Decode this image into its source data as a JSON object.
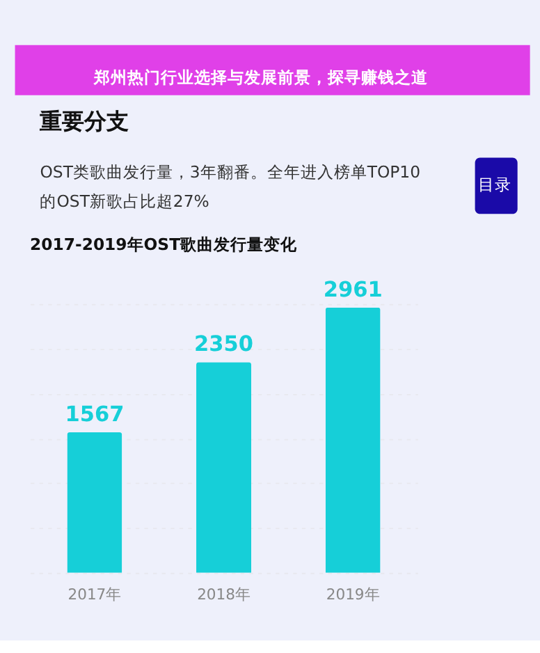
{
  "chart_data": {
    "type": "bar",
    "title": "2017-2019年OST歌曲发行量变化",
    "annotations": [
      "郑州热门行业选择与发展前景，探寻赚钱之道",
      "重要分支",
      "OST类歌曲发行量，3年翻番。全年进入榜单TOP10",
      "的OST新歌占比超27%",
      "目录"
    ],
    "categories": [
      "2017年",
      "2018年",
      "2019年"
    ],
    "values": [
      1567,
      2350,
      2961
    ],
    "color": "#16cfd8",
    "data_labels": true,
    "grid": "y",
    "tick_labels": "x"
  }
}
